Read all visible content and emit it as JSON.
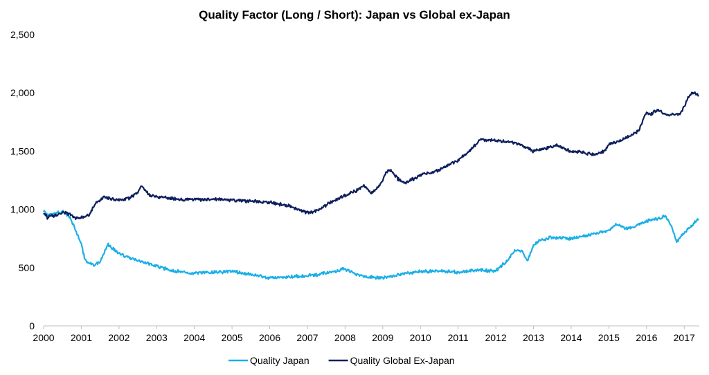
{
  "chart_data": {
    "type": "line",
    "title": "Quality Factor (Long / Short): Japan vs Global ex-Japan",
    "xlabel": "",
    "ylabel": "",
    "xlim": [
      2000,
      2017.4
    ],
    "ylim": [
      0,
      2500
    ],
    "x_ticks": [
      "2000",
      "2001",
      "2002",
      "2003",
      "2004",
      "2005",
      "2006",
      "2007",
      "2008",
      "2009",
      "2010",
      "2011",
      "2012",
      "2013",
      "2014",
      "2015",
      "2016",
      "2017"
    ],
    "y_ticks": [
      "0",
      "500",
      "1,000",
      "1,500",
      "2,000",
      "2,500"
    ],
    "grid": false,
    "legend_position": "bottom",
    "series": [
      {
        "name": "Quality Japan",
        "color": "#1aafe6",
        "x": [
          2000.0,
          2000.1,
          2000.25,
          2000.5,
          2000.7,
          2000.85,
          2001.0,
          2001.1,
          2001.3,
          2001.5,
          2001.7,
          2001.85,
          2002.0,
          2002.3,
          2002.5,
          2002.7,
          2003.0,
          2003.5,
          2004.0,
          2004.5,
          2005.0,
          2005.5,
          2006.0,
          2006.5,
          2007.0,
          2007.3,
          2007.6,
          2008.0,
          2008.3,
          2008.6,
          2009.0,
          2009.3,
          2009.6,
          2010.0,
          2010.5,
          2011.0,
          2011.5,
          2012.0,
          2012.3,
          2012.5,
          2012.7,
          2012.85,
          2013.0,
          2013.2,
          2013.5,
          2014.0,
          2014.5,
          2015.0,
          2015.2,
          2015.5,
          2015.8,
          2016.0,
          2016.3,
          2016.5,
          2016.65,
          2016.8,
          2017.0,
          2017.2,
          2017.38
        ],
        "y": [
          990,
          950,
          960,
          980,
          930,
          820,
          700,
          560,
          520,
          550,
          700,
          660,
          620,
          580,
          560,
          540,
          510,
          470,
          450,
          460,
          470,
          440,
          410,
          420,
          430,
          440,
          460,
          490,
          440,
          420,
          410,
          430,
          450,
          470,
          470,
          460,
          480,
          470,
          560,
          650,
          640,
          560,
          700,
          740,
          760,
          750,
          780,
          820,
          870,
          830,
          870,
          900,
          920,
          940,
          860,
          720,
          800,
          860,
          920
        ]
      },
      {
        "name": "Quality Global Ex-Japan",
        "color": "#0d1f5c",
        "x": [
          2000.0,
          2000.1,
          2000.3,
          2000.5,
          2000.7,
          2000.85,
          2001.0,
          2001.2,
          2001.4,
          2001.6,
          2001.8,
          2002.0,
          2002.3,
          2002.5,
          2002.6,
          2002.8,
          2003.0,
          2003.5,
          2004.0,
          2004.5,
          2005.0,
          2005.5,
          2006.0,
          2006.5,
          2007.0,
          2007.3,
          2007.6,
          2008.0,
          2008.3,
          2008.5,
          2008.7,
          2008.9,
          2009.0,
          2009.1,
          2009.2,
          2009.4,
          2009.6,
          2010.0,
          2010.5,
          2011.0,
          2011.3,
          2011.6,
          2012.0,
          2012.3,
          2012.6,
          2013.0,
          2013.3,
          2013.6,
          2014.0,
          2014.3,
          2014.6,
          2014.9,
          2015.0,
          2015.3,
          2015.6,
          2015.8,
          2016.0,
          2016.1,
          2016.3,
          2016.6,
          2016.9,
          2017.0,
          2017.1,
          2017.2,
          2017.3,
          2017.38
        ],
        "y": [
          980,
          930,
          950,
          970,
          960,
          920,
          930,
          950,
          1060,
          1100,
          1090,
          1080,
          1100,
          1140,
          1200,
          1120,
          1110,
          1090,
          1080,
          1090,
          1080,
          1070,
          1060,
          1030,
          970,
          990,
          1060,
          1120,
          1160,
          1200,
          1140,
          1200,
          1250,
          1320,
          1340,
          1260,
          1230,
          1290,
          1340,
          1420,
          1500,
          1600,
          1590,
          1580,
          1560,
          1500,
          1520,
          1550,
          1500,
          1490,
          1470,
          1500,
          1560,
          1590,
          1640,
          1680,
          1840,
          1820,
          1850,
          1810,
          1820,
          1880,
          1960,
          2000,
          2000,
          1970
        ]
      }
    ]
  }
}
